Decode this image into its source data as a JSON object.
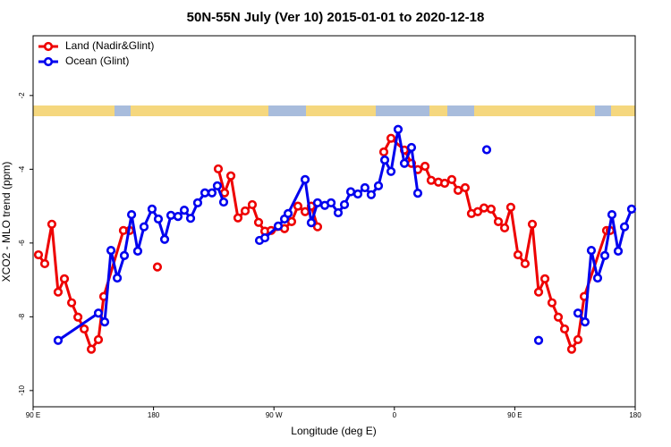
{
  "chart_data": {
    "type": "line",
    "title": "50N-55N July (Ver 10)   2015-01-01 to 2020-12-18",
    "xlabel": "Longitude (deg E)",
    "ylabel": "XCO2 - MLO trend (ppm)",
    "xlim": [
      90,
      540
    ],
    "xticks": [
      {
        "value": 90,
        "label": "90 E"
      },
      180,
      {
        "value": 270,
        "label": "90 W"
      },
      {
        "value": 360,
        "label": "0"
      },
      {
        "value": 450,
        "label": "90 E"
      },
      {
        "value": 540,
        "label": "180"
      }
    ],
    "ylim": [
      -10.44,
      -0.38
    ],
    "yticks": [
      -10,
      -8,
      -6,
      -4,
      -2
    ],
    "legend": "top-left",
    "series": [
      {
        "name": "Land (Nadir&Glint)",
        "color": "#ee0000",
        "x": [
          94.0,
          98.7,
          104.0,
          108.7,
          113.4,
          118.8,
          123.5,
          128.2,
          133.5,
          138.8,
          142.8,
          157.5,
          162.2,
          null,
          182.9,
          null,
          228.4,
          233.1,
          237.8,
          243.1,
          248.5,
          253.8,
          258.5,
          263.2,
          267.9,
          277.9,
          283.2,
          287.9,
          293.3,
          297.9,
          302.6,
          null,
          352.1,
          357.5,
          367.5,
          372.8,
          377.5,
          382.9,
          387.5,
          392.9,
          397.6,
          402.9,
          407.6,
          412.9,
          417.6,
          422.3,
          427.0,
          432.3,
          437.7,
          442.4,
          447.0,
          452.4,
          457.7,
          463.1,
          467.8,
          472.5,
          477.8,
          482.5,
          487.2,
          492.5,
          497.2,
          501.9,
          518.6,
          521.3
        ],
        "values": [
          -6.32,
          -6.56,
          -5.49,
          -7.33,
          -6.97,
          -7.62,
          -8.01,
          -8.33,
          -8.88,
          -8.62,
          -7.45,
          -5.66,
          -5.66,
          null,
          -6.65,
          null,
          -3.99,
          -4.64,
          -4.18,
          -5.32,
          -5.13,
          -4.96,
          -5.44,
          -5.68,
          -5.66,
          -5.61,
          -5.42,
          -5.0,
          -5.15,
          -5.0,
          -5.56,
          null,
          -3.53,
          -3.16,
          -3.48,
          -3.84,
          -4.01,
          -3.92,
          -4.3,
          -4.35,
          -4.38,
          -4.28,
          -4.57,
          -4.5,
          -5.2,
          -5.15,
          -5.05,
          -5.08,
          -5.42,
          -5.59,
          -5.03,
          -6.32,
          -6.56,
          -5.49,
          -7.33,
          -6.97,
          -7.62,
          -8.01,
          -8.33,
          -8.88,
          -8.62,
          -7.45,
          -5.66,
          -5.66
        ]
      },
      {
        "name": "Ocean (Glint)",
        "color": "#0000ee",
        "x": [
          108.7,
          138.8,
          143.5,
          148.2,
          152.9,
          158.2,
          163.6,
          168.2,
          172.9,
          178.9,
          183.6,
          188.3,
          193.0,
          198.3,
          203.0,
          207.7,
          213.0,
          218.4,
          223.7,
          227.7,
          232.4,
          null,
          259.2,
          263.2,
          273.2,
          277.9,
          280.6,
          293.3,
          297.9,
          302.6,
          308.0,
          312.7,
          318.0,
          322.7,
          327.4,
          332.7,
          338.0,
          342.7,
          348.1,
          352.8,
          357.5,
          362.8,
          367.5,
          372.8,
          377.5,
          null,
          429.0,
          null,
          467.8,
          null,
          497.2,
          502.5,
          507.2,
          511.9,
          517.3,
          522.6,
          527.3,
          532.0,
          537.3
        ],
        "values": [
          -8.64,
          -7.9,
          -8.14,
          -6.2,
          -6.95,
          -6.34,
          -5.23,
          -6.22,
          -5.56,
          -5.08,
          -5.35,
          -5.9,
          -5.25,
          -5.28,
          -5.11,
          -5.33,
          -4.91,
          -4.64,
          -4.64,
          -4.45,
          -4.89,
          null,
          -5.93,
          -5.86,
          -5.54,
          -5.35,
          -5.2,
          -4.28,
          -5.45,
          -4.91,
          -4.98,
          -4.91,
          -5.18,
          -4.96,
          -4.61,
          -4.67,
          -4.5,
          -4.69,
          -4.45,
          -3.75,
          -4.06,
          -2.92,
          -3.84,
          -3.41,
          -4.65,
          null,
          -3.47,
          null,
          -8.64,
          null,
          -7.9,
          -8.14,
          -6.2,
          -6.95,
          -6.34,
          -5.23,
          -6.22,
          -5.56,
          -5.08
        ]
      }
    ]
  }
}
